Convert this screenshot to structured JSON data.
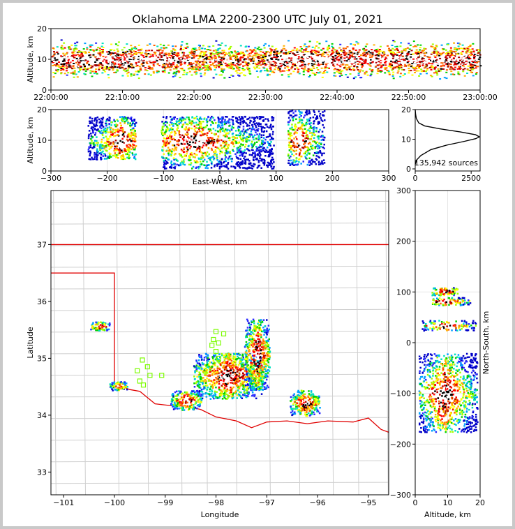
{
  "title": "Oklahoma LMA 2200-2300 UTC July 01, 2021",
  "chart_data": [
    {
      "name": "time-height",
      "type": "heatmap",
      "xlabel": "",
      "ylabel": "Altitude, km",
      "x_range": [
        "22:00:00",
        "23:00:00"
      ],
      "ylim": [
        0,
        20
      ],
      "xticks": [
        "22:00:00",
        "22:10:00",
        "22:20:00",
        "22:30:00",
        "22:40:00",
        "22:50:00",
        "23:00:00"
      ],
      "yticks": [
        "0",
        "10",
        "20"
      ],
      "density": {
        "band_center_km": 10,
        "band_top_km": 18,
        "band_bottom_km": 2,
        "quiet_intervals": [
          [
            "22:20:00",
            "22:30:00"
          ]
        ]
      }
    },
    {
      "name": "east-west-height",
      "type": "heatmap",
      "xlabel": "East-West, km",
      "ylabel": "Altitude, km",
      "xlim": [
        -300,
        300
      ],
      "ylim": [
        0,
        20
      ],
      "xticks": [
        "−300",
        "−200",
        "−100",
        "0",
        "100",
        "200",
        "300"
      ],
      "yticks": [
        "0",
        "10",
        "20"
      ],
      "cells": [
        {
          "x": [
            -235,
            -150
          ],
          "y": [
            4,
            18
          ],
          "peak_x": -178
        },
        {
          "x": [
            -105,
            95
          ],
          "y": [
            1,
            18
          ],
          "peak_x": -50
        },
        {
          "x": [
            120,
            185
          ],
          "y": [
            2,
            20
          ],
          "peak_x": 140
        }
      ]
    },
    {
      "name": "altitude-histogram",
      "type": "line",
      "xlabel": "",
      "ylabel": "",
      "xlim": [
        0,
        2900
      ],
      "ylim": [
        0,
        20
      ],
      "xticks": [
        "0",
        "2500"
      ],
      "yticks": [
        "0",
        "10",
        "20"
      ],
      "annotation": "135,942 sources",
      "x": [
        0,
        60,
        250,
        700,
        1400,
        2200,
        2700,
        2870,
        2700,
        2000,
        1100,
        420,
        160,
        50,
        15,
        0
      ],
      "y": [
        1.5,
        3,
        4.5,
        6.5,
        8,
        9.3,
        10.2,
        10.8,
        11.5,
        12.5,
        13.5,
        14.5,
        15.5,
        17,
        18.5,
        20
      ]
    },
    {
      "name": "plan-view",
      "type": "heatmap",
      "xlabel": "Longitude",
      "ylabel": "Latitude",
      "xlim": [
        -101.25,
        -94.6
      ],
      "ylim": [
        32.6,
        37.95
      ],
      "xticks": [
        "−101",
        "−100",
        "−99",
        "−98",
        "−97",
        "−96",
        "−95"
      ],
      "yticks": [
        "33",
        "34",
        "35",
        "36",
        "37"
      ],
      "stations_color": "#7cfc00",
      "stations": [
        [
          -98.0,
          35.47
        ],
        [
          -97.85,
          35.43
        ],
        [
          -98.05,
          35.33
        ],
        [
          -97.95,
          35.27
        ],
        [
          -98.08,
          35.23
        ],
        [
          -98.0,
          35.12
        ],
        [
          -97.95,
          35.0
        ],
        [
          -99.45,
          34.97
        ],
        [
          -99.35,
          34.85
        ],
        [
          -99.55,
          34.78
        ],
        [
          -99.3,
          34.7
        ],
        [
          -99.07,
          34.7
        ],
        [
          -99.5,
          34.6
        ],
        [
          -99.43,
          34.53
        ]
      ],
      "cells": [
        {
          "lon": [
            -98.45,
            -97.1
          ],
          "lat": [
            34.3,
            35.1
          ]
        },
        {
          "lon": [
            -97.45,
            -96.95
          ],
          "lat": [
            34.45,
            35.7
          ]
        },
        {
          "lon": [
            -96.55,
            -95.95
          ],
          "lat": [
            34.0,
            34.45
          ]
        },
        {
          "lon": [
            -98.9,
            -98.3
          ],
          "lat": [
            34.1,
            34.45
          ]
        },
        {
          "lon": [
            -100.5,
            -100.1
          ],
          "lat": [
            35.5,
            35.65
          ]
        },
        {
          "lon": [
            -100.1,
            -99.75
          ],
          "lat": [
            34.45,
            34.6
          ]
        }
      ]
    },
    {
      "name": "north-south-height",
      "type": "heatmap",
      "xlabel": "Altitude, km",
      "ylabel": "North-South, km",
      "xlim": [
        0,
        20
      ],
      "ylim": [
        -300,
        300
      ],
      "xticks": [
        "0",
        "10",
        "20"
      ],
      "yticks": [
        "−300",
        "−200",
        "−100",
        "0",
        "100",
        "200",
        "300"
      ],
      "bands": [
        {
          "ns": [
            -175,
            -20
          ],
          "alt": [
            1,
            19
          ],
          "peak_ns": -100
        },
        {
          "ns": [
            25,
            45
          ],
          "alt": [
            2,
            19
          ]
        },
        {
          "ns": [
            75,
            90
          ],
          "alt": [
            5,
            17
          ]
        },
        {
          "ns": [
            95,
            110
          ],
          "alt": [
            5,
            13
          ]
        }
      ]
    }
  ]
}
